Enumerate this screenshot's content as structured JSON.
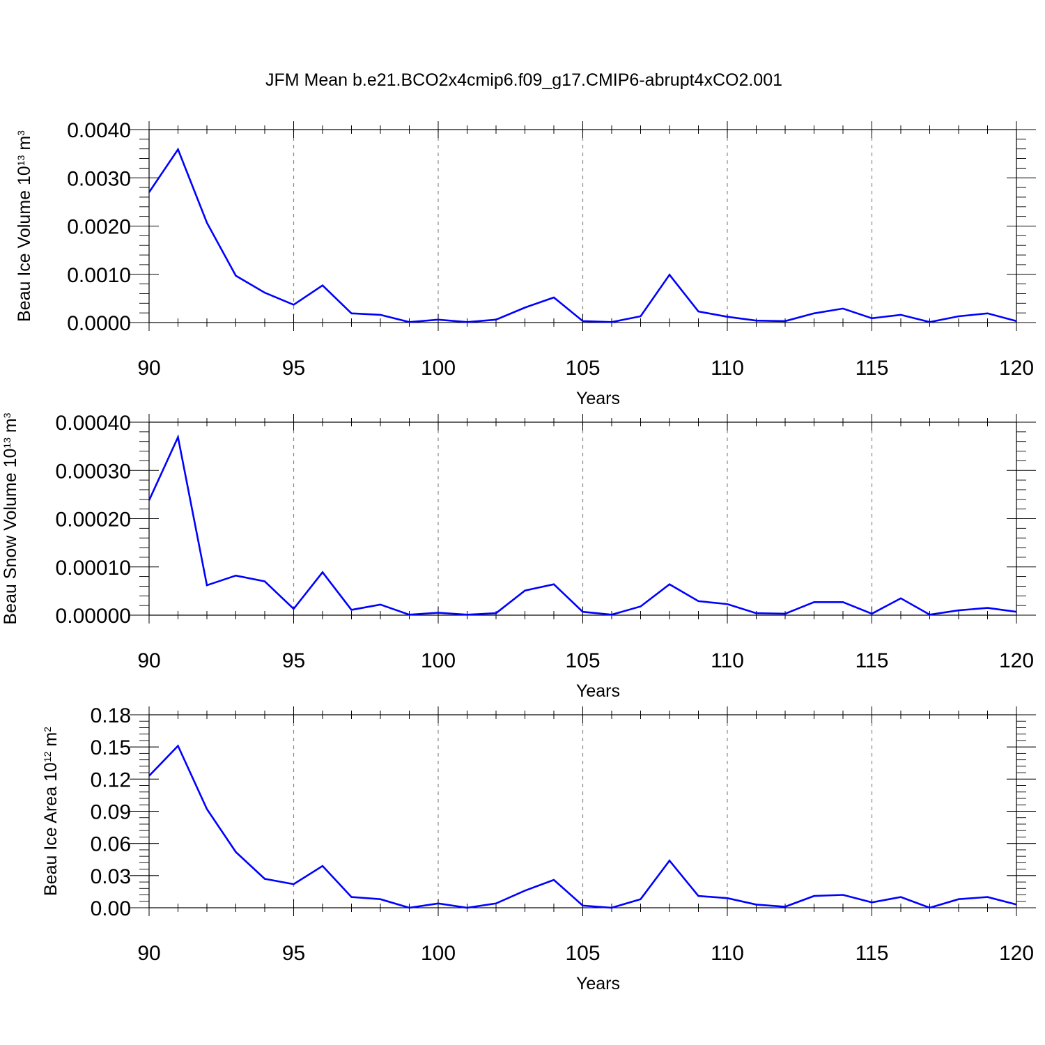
{
  "figure_title": "JFM Mean b.e21.BCO2x4cmip6.f09_g17.CMIP6-abrupt4xCO2.001",
  "colors": {
    "line": "#0000ff",
    "axis": "#000000",
    "grid": "#888888"
  },
  "chart_data": [
    {
      "type": "line",
      "ylabel": {
        "parts": [
          {
            "text": "Beau Ice Volume 10",
            "sup": false
          },
          {
            "text": "13",
            "sup": true
          },
          {
            "text": " m",
            "sup": false
          },
          {
            "text": "3",
            "sup": true
          }
        ]
      },
      "xlabel": "Years",
      "xlim": [
        90,
        120
      ],
      "ylim": [
        -0.0,
        0.004
      ],
      "xticks": [
        90,
        95,
        100,
        105,
        110,
        115,
        120
      ],
      "yticks": [
        0.0,
        0.001,
        0.002,
        0.003,
        0.004
      ],
      "ytick_labels": [
        "0.0000",
        "0.0010",
        "0.0020",
        "0.0030",
        "0.0040"
      ],
      "x": [
        90,
        91,
        92,
        93,
        94,
        95,
        96,
        97,
        98,
        99,
        100,
        101,
        102,
        103,
        104,
        105,
        106,
        107,
        108,
        109,
        110,
        111,
        112,
        113,
        114,
        115,
        116,
        117,
        118,
        119,
        120
      ],
      "values": [
        0.0027,
        0.00359,
        0.00207,
        0.00097,
        0.00062,
        0.00037,
        0.00077,
        0.00019,
        0.00016,
        1e-05,
        6e-05,
        1e-05,
        6e-05,
        0.00031,
        0.00052,
        3e-05,
        1e-05,
        0.00013,
        0.00099,
        0.00023,
        0.00012,
        4e-05,
        3e-05,
        0.00019,
        0.00029,
        9e-05,
        0.00016,
        1e-05,
        0.00013,
        0.00019,
        3e-05
      ]
    },
    {
      "type": "line",
      "ylabel": {
        "parts": [
          {
            "text": "Beau Snow Volume 10",
            "sup": false
          },
          {
            "text": "13",
            "sup": true
          },
          {
            "text": " m",
            "sup": false
          },
          {
            "text": "3",
            "sup": true
          }
        ]
      },
      "xlabel": "Years",
      "xlim": [
        90,
        120
      ],
      "ylim": [
        0.0,
        0.0004
      ],
      "xticks": [
        90,
        95,
        100,
        105,
        110,
        115,
        120
      ],
      "yticks": [
        0.0,
        0.0001,
        0.0002,
        0.0003,
        0.0004
      ],
      "ytick_labels": [
        "0.00000",
        "0.00010",
        "0.00020",
        "0.00030",
        "0.00040"
      ],
      "x": [
        90,
        91,
        92,
        93,
        94,
        95,
        96,
        97,
        98,
        99,
        100,
        101,
        102,
        103,
        104,
        105,
        106,
        107,
        108,
        109,
        110,
        111,
        112,
        113,
        114,
        115,
        116,
        117,
        118,
        119,
        120
      ],
      "values": [
        0.000238,
        0.000369,
        6.2e-05,
        8.2e-05,
        7e-05,
        1.3e-05,
        8.9e-05,
        1.1e-05,
        2.2e-05,
        1e-06,
        5e-06,
        1e-06,
        4e-06,
        5.1e-05,
        6.4e-05,
        7e-06,
        1e-06,
        1.8e-05,
        6.4e-05,
        2.9e-05,
        2.3e-05,
        4e-06,
        3e-06,
        2.7e-05,
        2.7e-05,
        3e-06,
        3.5e-05,
        1e-06,
        1e-05,
        1.5e-05,
        7e-06
      ]
    },
    {
      "type": "line",
      "ylabel": {
        "parts": [
          {
            "text": "Beau Ice Area 10",
            "sup": false
          },
          {
            "text": "12",
            "sup": true
          },
          {
            "text": " m",
            "sup": false
          },
          {
            "text": "2",
            "sup": true
          }
        ]
      },
      "xlabel": "Years",
      "xlim": [
        90,
        120
      ],
      "ylim": [
        0.0,
        0.18
      ],
      "xticks": [
        90,
        95,
        100,
        105,
        110,
        115,
        120
      ],
      "yticks": [
        0.0,
        0.03,
        0.06,
        0.09,
        0.12,
        0.15,
        0.18
      ],
      "ytick_labels": [
        "0.00",
        "0.03",
        "0.06",
        "0.09",
        "0.12",
        "0.15",
        "0.18"
      ],
      "x": [
        90,
        91,
        92,
        93,
        94,
        95,
        96,
        97,
        98,
        99,
        100,
        101,
        102,
        103,
        104,
        105,
        106,
        107,
        108,
        109,
        110,
        111,
        112,
        113,
        114,
        115,
        116,
        117,
        118,
        119,
        120
      ],
      "values": [
        0.123,
        0.151,
        0.092,
        0.052,
        0.027,
        0.022,
        0.039,
        0.01,
        0.008,
        0.0,
        0.004,
        0.0,
        0.004,
        0.016,
        0.026,
        0.002,
        0.0,
        0.008,
        0.044,
        0.011,
        0.009,
        0.003,
        0.001,
        0.011,
        0.012,
        0.005,
        0.01,
        0.0,
        0.008,
        0.01,
        0.003
      ]
    }
  ]
}
